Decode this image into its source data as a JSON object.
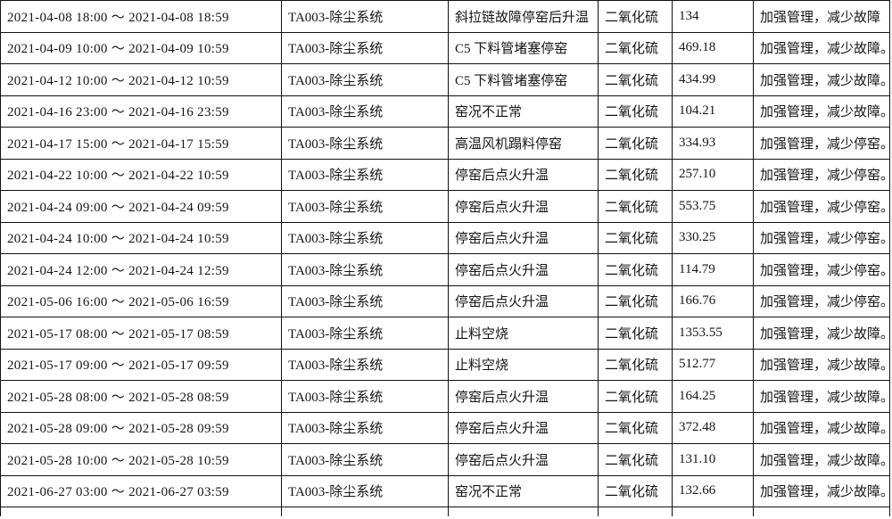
{
  "colors": {
    "background": "#ffffff",
    "border": "#121212",
    "text": "#161616"
  },
  "table": {
    "rows": [
      {
        "time_range": "2021-04-08 18:00 ～ 2021-04-08 18:59",
        "system": "TA003-除尘系统",
        "reason": "斜拉链故障停窑后升温",
        "pollutant": "二氧化硫",
        "value": "134",
        "advice": "加强管理，减少故障"
      },
      {
        "time_range": "2021-04-09 10:00 ～ 2021-04-09 10:59",
        "system": "TA003-除尘系统",
        "reason": "C5 下料管堵塞停窑",
        "pollutant": "二氧化硫",
        "value": "469.18",
        "advice": "加强管理，减少故障。"
      },
      {
        "time_range": "2021-04-12 10:00 ～ 2021-04-12 10:59",
        "system": "TA003-除尘系统",
        "reason": "C5 下料管堵塞停窑",
        "pollutant": "二氧化硫",
        "value": "434.99",
        "advice": "加强管理，减少故障。"
      },
      {
        "time_range": "2021-04-16 23:00 ～ 2021-04-16 23:59",
        "system": "TA003-除尘系统",
        "reason": "窑况不正常",
        "pollutant": "二氧化硫",
        "value": "104.21",
        "advice": "加强管理，减少故障。"
      },
      {
        "time_range": "2021-04-17 15:00 ～ 2021-04-17 15:59",
        "system": "TA003-除尘系统",
        "reason": "高温风机蹋料停窑",
        "pollutant": "二氧化硫",
        "value": "334.93",
        "advice": "加强管理，减少停窑。"
      },
      {
        "time_range": "2021-04-22 10:00 ～ 2021-04-22 10:59",
        "system": "TA003-除尘系统",
        "reason": "停窑后点火升温",
        "pollutant": "二氧化硫",
        "value": "257.10",
        "advice": "加强管理，减少停窑。"
      },
      {
        "time_range": "2021-04-24 09:00 ～ 2021-04-24 09:59",
        "system": "TA003-除尘系统",
        "reason": "停窑后点火升温",
        "pollutant": "二氧化硫",
        "value": "553.75",
        "advice": "加强管理，减少停窑。"
      },
      {
        "time_range": "2021-04-24 10:00 ～ 2021-04-24 10:59",
        "system": "TA003-除尘系统",
        "reason": "停窑后点火升温",
        "pollutant": "二氧化硫",
        "value": "330.25",
        "advice": "加强管理，减少停窑。"
      },
      {
        "time_range": "2021-04-24 12:00 ～ 2021-04-24 12:59",
        "system": "TA003-除尘系统",
        "reason": "停窑后点火升温",
        "pollutant": "二氧化硫",
        "value": "114.79",
        "advice": "加强管理，减少停窑。"
      },
      {
        "time_range": "2021-05-06 16:00 ～ 2021-05-06 16:59",
        "system": "TA003-除尘系统",
        "reason": "停窑后点火升温",
        "pollutant": "二氧化硫",
        "value": "166.76",
        "advice": "加强管理，减少停窑。"
      },
      {
        "time_range": "2021-05-17 08:00 ～ 2021-05-17 08:59",
        "system": "TA003-除尘系统",
        "reason": "止料空烧",
        "pollutant": "二氧化硫",
        "value": "1353.55",
        "advice": "加强管理，减少故障。"
      },
      {
        "time_range": "2021-05-17 09:00 ～ 2021-05-17 09:59",
        "system": "TA003-除尘系统",
        "reason": "止料空烧",
        "pollutant": "二氧化硫",
        "value": "512.77",
        "advice": "加强管理，减少故障。"
      },
      {
        "time_range": "2021-05-28 08:00 ～ 2021-05-28 08:59",
        "system": "TA003-除尘系统",
        "reason": "停窑后点火升温",
        "pollutant": "二氧化硫",
        "value": "164.25",
        "advice": "加强管理，减少故障。"
      },
      {
        "time_range": "2021-05-28 09:00 ～ 2021-05-28 09:59",
        "system": "TA003-除尘系统",
        "reason": "停窑后点火升温",
        "pollutant": "二氧化硫",
        "value": "372.48",
        "advice": "加强管理，减少故障。"
      },
      {
        "time_range": "2021-05-28 10:00 ～ 2021-05-28 10:59",
        "system": "TA003-除尘系统",
        "reason": "停窑后点火升温",
        "pollutant": "二氧化硫",
        "value": "131.10",
        "advice": "加强管理，减少故障。"
      },
      {
        "time_range": "2021-06-27 03:00 ～ 2021-06-27 03:59",
        "system": "TA003-除尘系统",
        "reason": "窑况不正常",
        "pollutant": "二氧化硫",
        "value": "132.66",
        "advice": "加强管理，减少故障。"
      }
    ]
  }
}
